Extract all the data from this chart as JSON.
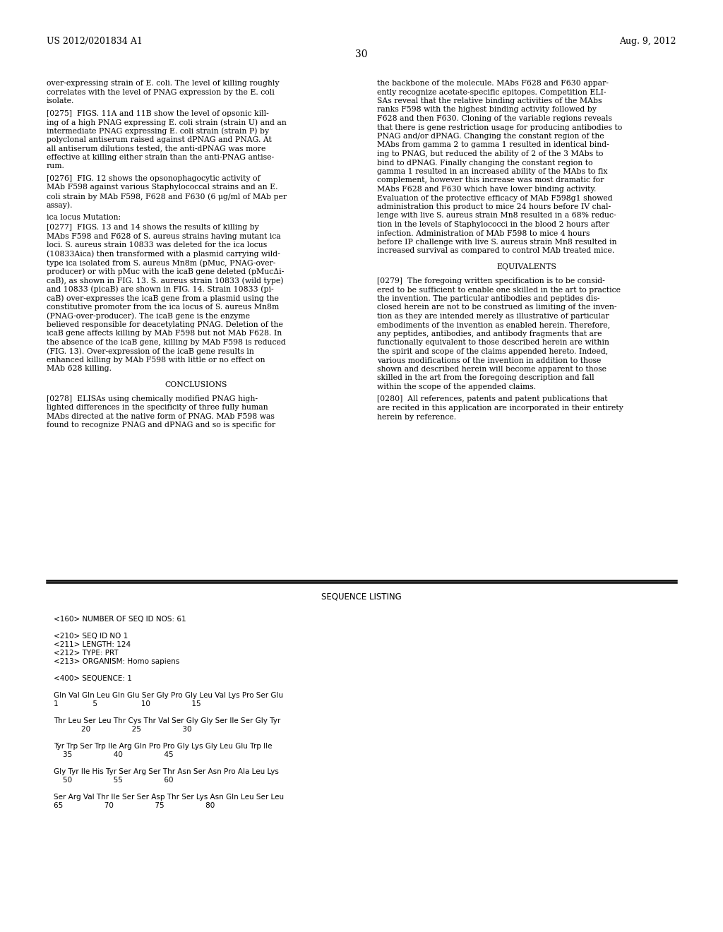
{
  "bg_color": "#ffffff",
  "header_left": "US 2012/0201834 A1",
  "header_right": "Aug. 9, 2012",
  "page_number": "30",
  "col1_paragraphs": [
    {
      "type": "text",
      "lines": [
        "over-expressing strain of E. coli. The level of killing roughly",
        "correlates with the level of PNAG expression by the E. coli",
        "isolate."
      ]
    },
    {
      "type": "numbered",
      "num": "[0275]",
      "lines": [
        "  FIGS. 11A and 11B show the level of opsonic kill-",
        "ing of a high PNAG expressing E. coli strain (strain U) and an",
        "intermediate PNAG expressing E. coli strain (strain P) by",
        "polyclonal antiserum raised against dPNAG and PNAG. At",
        "all antiserum dilutions tested, the anti-dPNAG was more",
        "effective at killing either strain than the anti-PNAG antise-",
        "rum."
      ]
    },
    {
      "type": "numbered",
      "num": "[0276]",
      "lines": [
        "  FIG. 12 shows the opsonophagocytic activity of",
        "MAb F598 against various Staphylococcal strains and an E.",
        "coli strain by MAb F598, F628 and F630 (6 μg/ml of MAb per",
        "assay)."
      ]
    },
    {
      "type": "plain",
      "lines": [
        "ica locus Mutation:"
      ]
    },
    {
      "type": "numbered",
      "num": "[0277]",
      "lines": [
        "  FIGS. 13 and 14 shows the results of killing by",
        "MAbs F598 and F628 of S. aureus strains having mutant ica",
        "loci. S. aureus strain 10833 was deleted for the ica locus",
        "(10833Aica) then transformed with a plasmid carrying wild-",
        "type ica isolated from S. aureus Mn8m (pMuc, PNAG-over-",
        "producer) or with pMuc with the icaB gene deleted (pMucΔi-",
        "caB), as shown in FIG. 13. S. aureus strain 10833 (wild type)",
        "and 10833 (picaB) are shown in FIG. 14. Strain 10833 (pi-",
        "caB) over-expresses the icaB gene from a plasmid using the",
        "constitutive promoter from the ica locus of S. aureus Mn8m",
        "(PNAG-over-producer). The icaB gene is the enzyme",
        "believed responsible for deacetylating PNAG. Deletion of the",
        "icaB gene affects killing by MAb F598 but not MAb F628. In",
        "the absence of the icaB gene, killing by MAb F598 is reduced",
        "(FIG. 13). Over-expression of the icaB gene results in",
        "enhanced killing by MAb F598 with little or no effect on",
        "MAb 628 killing."
      ]
    },
    {
      "type": "heading",
      "text": "CONCLUSIONS"
    },
    {
      "type": "numbered",
      "num": "[0278]",
      "lines": [
        "  ELISAs using chemically modified PNAG high-",
        "lighted differences in the specificity of three fully human",
        "MAbs directed at the native form of PNAG. MAb F598 was",
        "found to recognize PNAG and dPNAG and so is specific for"
      ]
    }
  ],
  "col2_paragraphs": [
    {
      "type": "text",
      "lines": [
        "the backbone of the molecule. MAbs F628 and F630 appar-",
        "ently recognize acetate-specific epitopes. Competition ELI-",
        "SAs reveal that the relative binding activities of the MAbs",
        "ranks F598 with the highest binding activity followed by",
        "F628 and then F630. Cloning of the variable regions reveals",
        "that there is gene restriction usage for producing antibodies to",
        "PNAG and/or dPNAG. Changing the constant region of the",
        "MAbs from gamma 2 to gamma 1 resulted in identical bind-",
        "ing to PNAG, but reduced the ability of 2 of the 3 MAbs to",
        "bind to dPNAG. Finally changing the constant region to",
        "gamma 1 resulted in an increased ability of the MAbs to fix",
        "complement, however this increase was most dramatic for",
        "MAbs F628 and F630 which have lower binding activity.",
        "Evaluation of the protective efficacy of MAb F598g1 showed",
        "administration this product to mice 24 hours before IV chal-",
        "lenge with live S. aureus strain Mn8 resulted in a 68% reduc-",
        "tion in the levels of Staphylococci in the blood 2 hours after",
        "infection. Administration of MAb F598 to mice 4 hours",
        "before IP challenge with live S. aureus strain Mn8 resulted in",
        "increased survival as compared to control MAb treated mice."
      ]
    },
    {
      "type": "heading",
      "text": "EQUIVALENTS"
    },
    {
      "type": "numbered",
      "num": "[0279]",
      "lines": [
        "  The foregoing written specification is to be consid-",
        "ered to be sufficient to enable one skilled in the art to practice",
        "the invention. The particular antibodies and peptides dis-",
        "closed herein are not to be construed as limiting of the inven-",
        "tion as they are intended merely as illustrative of particular",
        "embodiments of the invention as enabled herein. Therefore,",
        "any peptides, antibodies, and antibody fragments that are",
        "functionally equivalent to those described herein are within",
        "the spirit and scope of the claims appended hereto. Indeed,",
        "various modifications of the invention in addition to those",
        "shown and described herein will become apparent to those",
        "skilled in the art from the foregoing description and fall",
        "within the scope of the appended claims."
      ]
    },
    {
      "type": "numbered",
      "num": "[0280]",
      "lines": [
        "  All references, patents and patent publications that",
        "are recited in this application are incorporated in their entirety",
        "herein by reference."
      ]
    }
  ],
  "sequence_listing_title": "SEQUENCE LISTING",
  "sequence_lines": [
    "",
    "<160> NUMBER OF SEQ ID NOS: 61",
    "",
    "<210> SEQ ID NO 1",
    "<211> LENGTH: 124",
    "<212> TYPE: PRT",
    "<213> ORGANISM: Homo sapiens",
    "",
    "<400> SEQUENCE: 1",
    "",
    "Gln Val Gln Leu Gln Glu Ser Gly Pro Gly Leu Val Lys Pro Ser Glu",
    "1               5                   10                  15",
    "",
    "Thr Leu Ser Leu Thr Cys Thr Val Ser Gly Gly Ser Ile Ser Gly Tyr",
    "            20                  25                  30",
    "",
    "Tyr Trp Ser Trp Ile Arg Gln Pro Pro Gly Lys Gly Leu Glu Trp Ile",
    "    35                  40                  45",
    "",
    "Gly Tyr Ile His Tyr Ser Arg Ser Thr Asn Ser Asn Pro Ala Leu Lys",
    "    50                  55                  60",
    "",
    "Ser Arg Val Thr Ile Ser Ser Asp Thr Ser Lys Asn Gln Leu Ser Leu",
    "65                  70                  75                  80"
  ]
}
